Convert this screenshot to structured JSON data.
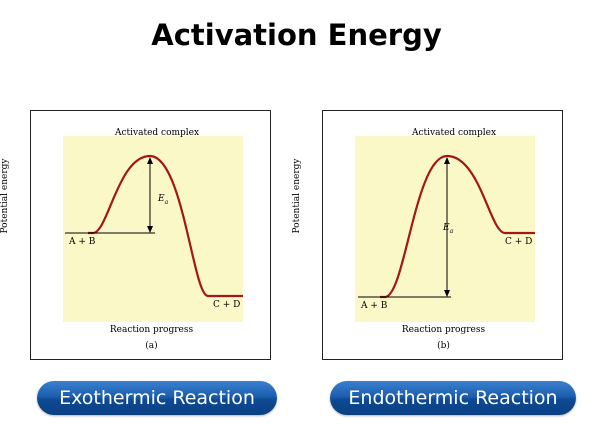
{
  "title": "Activation Energy",
  "colors": {
    "curve": "#a4161a",
    "plot_bg": "#fbf8c7",
    "button": "#1d5fae"
  },
  "panels": [
    {
      "ylabel": "Potential energy",
      "xlabel": "Reaction progress",
      "sublabel": "(a)",
      "activated_complex": "Activated complex",
      "ea_symbol": "E",
      "ea_sub": "a",
      "reactants": "A + B",
      "products": "C + D",
      "button": "Exothermic Reaction"
    },
    {
      "ylabel": "Potential energy",
      "xlabel": "Reaction progress",
      "sublabel": "(b)",
      "activated_complex": "Activated complex",
      "ea_symbol": "E",
      "ea_sub": "a",
      "reactants": "A + B",
      "products": "C + D",
      "button": "Endothermic Reaction"
    }
  ]
}
